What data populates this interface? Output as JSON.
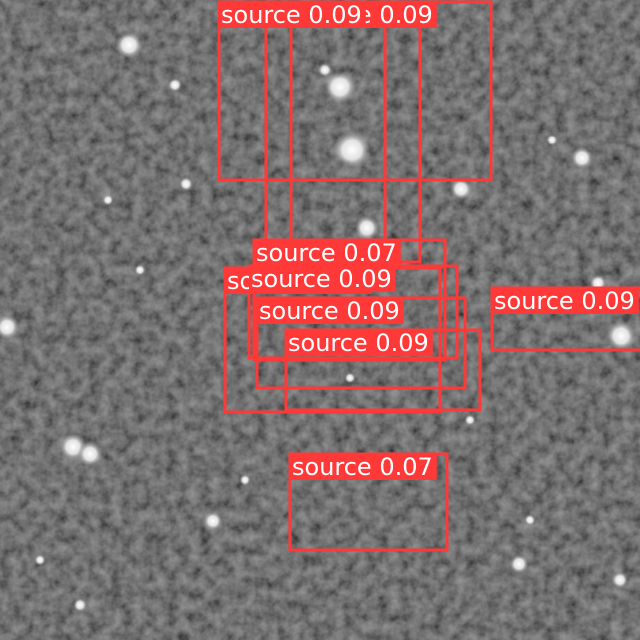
{
  "detections": [
    {
      "label": "source 0.09"
    },
    {
      "label": "source 0.09"
    },
    {
      "label": "source 0.09"
    },
    {
      "label": "source 0.07"
    },
    {
      "label": "source 0.09"
    },
    {
      "label": "source 0.09"
    },
    {
      "label": "source 0.09"
    },
    {
      "label": "source 0.09"
    },
    {
      "label": "source 0.09"
    },
    {
      "label": "source 0.07"
    }
  ]
}
